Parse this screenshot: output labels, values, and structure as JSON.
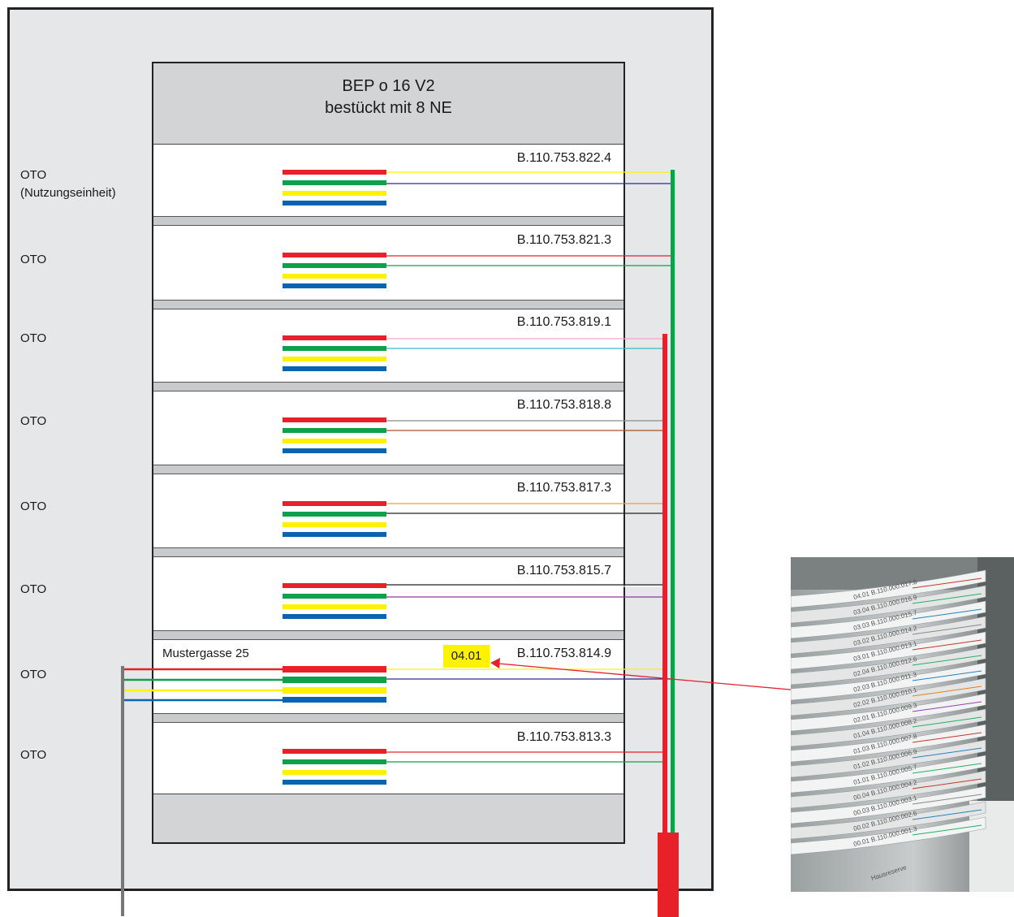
{
  "header": {
    "line1": "BEP o 16 V2",
    "line2": "bestückt mit 8 NE"
  },
  "units": [
    {
      "code": "B.110.753.822.4",
      "oto": "OTO",
      "oto_sub": "(Nutzungseinheit)"
    },
    {
      "code": "B.110.753.821.3",
      "oto": "OTO"
    },
    {
      "code": "B.110.753.819.1",
      "oto": "OTO"
    },
    {
      "code": "B.110.753.818.8",
      "oto": "OTO"
    },
    {
      "code": "B.110.753.817.3",
      "oto": "OTO"
    },
    {
      "code": "B.110.753.815.7",
      "oto": "OTO"
    },
    {
      "code": "B.110.753.814.9",
      "oto": "OTO",
      "street": "Mustergasse 25",
      "port": "04.01"
    },
    {
      "code": "B.110.753.813.3",
      "oto": "OTO"
    }
  ],
  "colors": {
    "red": "#e8202a",
    "green": "#0ea04b",
    "yellow": "#fff200",
    "blue": "#0a64b0",
    "pink": "#f4a6c8",
    "cyan": "#39b9c9",
    "grey": "#8a8a8a",
    "brown": "#a0522d",
    "orange": "#f0a030",
    "black": "#222222",
    "purple": "#8b3a9b",
    "navy": "#2b2d8f"
  },
  "photo": {
    "label_lines": [
      "04.01 B.110.000.017.8",
      "03.04 B.110.000.016.9",
      "03.03 B.110.000.015.7",
      "03.02 B.110.000.014.2",
      "03.01 B.110.000.013.1",
      "02.04 B.110.000.012.6",
      "02.03 B.110.000.011.3",
      "02.02 B.110.000.010.1",
      "02.01 B.110.000.009.3",
      "01.04 B.110.000.008.2",
      "01.03 B.110.000.007.8",
      "01.02 B.110.000.006.9",
      "01.01 B.110.000.005.7",
      "00.04 B.110.000.004.2",
      "00.03 B.110.000.003.1",
      "00.02 B.110.000.002.6",
      "00.01 B.110.000.001.3"
    ],
    "bottom_label": "Hausreserve"
  }
}
